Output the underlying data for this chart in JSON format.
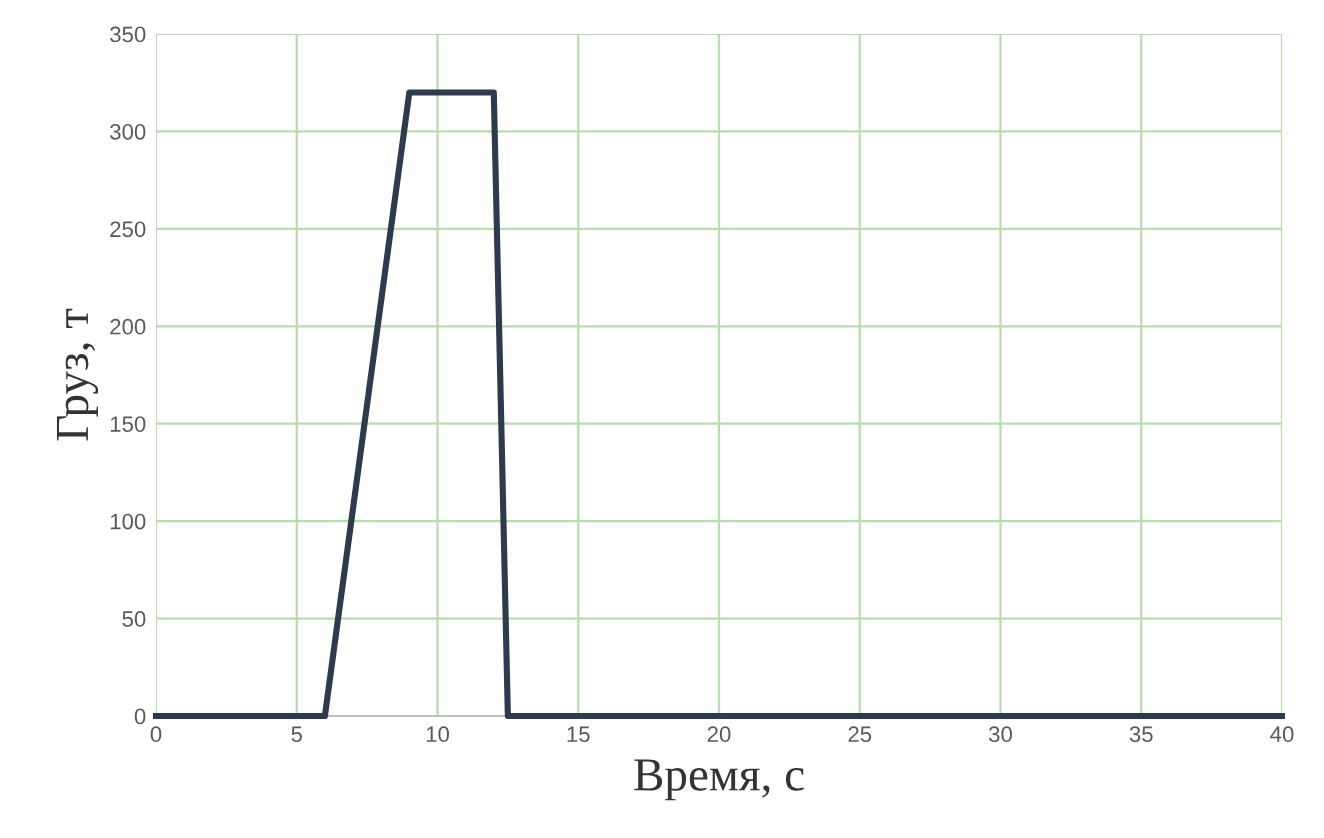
{
  "chart_data": {
    "type": "line",
    "xlabel": "Время, с",
    "ylabel": "Груз, т",
    "x": [
      0,
      6,
      9,
      12,
      12.5,
      40
    ],
    "series": [
      {
        "color": "#2e3a4e",
        "values": [
          0,
          0,
          320,
          320,
          0,
          0
        ]
      }
    ],
    "xlim": [
      0,
      40
    ],
    "xticks": [
      0,
      5,
      10,
      15,
      20,
      25,
      30,
      35,
      40
    ],
    "ylim": [
      0,
      350
    ],
    "yticks": [
      0,
      50,
      100,
      150,
      200,
      250,
      300,
      350
    ],
    "grid": true,
    "marker": "none",
    "line_style": "solid"
  }
}
